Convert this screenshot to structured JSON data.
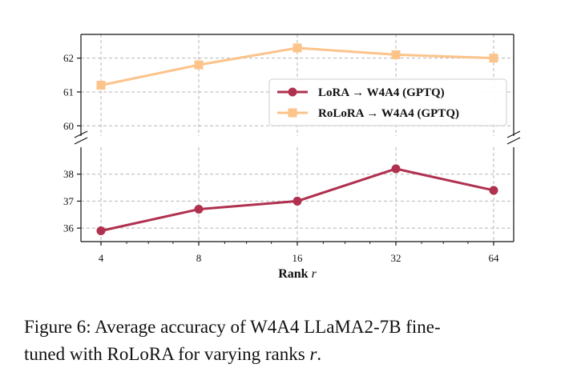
{
  "chart_data": {
    "type": "line",
    "x": [
      4,
      8,
      16,
      32,
      64
    ],
    "x_ticklabels": [
      "4",
      "8",
      "16",
      "32",
      "64"
    ],
    "xscale": "log2",
    "xlabel": "Rank r",
    "xlabel_text": "Rank",
    "xlabel_var": "r",
    "broken_y_axis": true,
    "upper_ylim": [
      59.7,
      62.7
    ],
    "upper_yticks": [
      "60",
      "61",
      "62"
    ],
    "lower_ylim": [
      35.5,
      39.0
    ],
    "lower_yticks": [
      "36",
      "37",
      "38"
    ],
    "grid": true,
    "legend_position": "center-right",
    "series": [
      {
        "name": "LoRA → W4A4 (GPTQ)",
        "color": "#b0304f",
        "marker": "circle",
        "values": [
          35.9,
          36.7,
          37.0,
          38.2,
          37.4
        ]
      },
      {
        "name": "RoLoRA → W4A4 (GPTQ)",
        "color": "#fcc38a",
        "marker": "square",
        "values": [
          61.2,
          61.8,
          62.3,
          62.1,
          62.0
        ]
      }
    ]
  },
  "caption": {
    "line1": "Figure 6: Average accuracy of W4A4 LLaMA2-7B fine-",
    "line2_prefix": "tuned with RoLoRA for varying ranks ",
    "line2_var": "r",
    "line2_suffix": "."
  }
}
